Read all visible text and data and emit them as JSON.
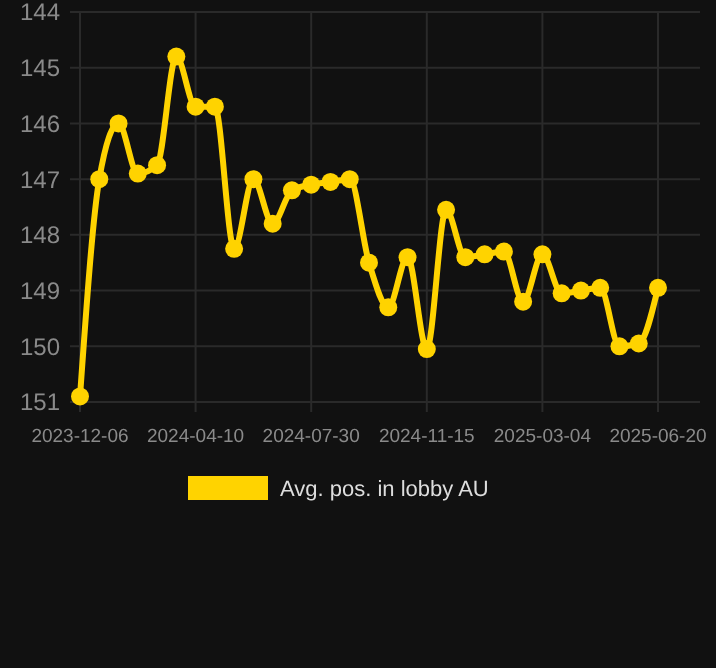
{
  "chart_data": {
    "type": "line",
    "categories": [
      "2023-12-06",
      null,
      null,
      null,
      null,
      null,
      "2024-04-10",
      null,
      null,
      null,
      null,
      null,
      "2024-07-30",
      null,
      null,
      null,
      null,
      null,
      "2024-11-15",
      null,
      null,
      null,
      null,
      null,
      "2025-03-04",
      null,
      null,
      null,
      null,
      null,
      "2025-06-20"
    ],
    "series": [
      {
        "name": "Avg. pos. in lobby AU",
        "color": "#ffd300",
        "values": [
          150.9,
          147.0,
          146.0,
          146.9,
          146.75,
          144.8,
          145.7,
          145.7,
          148.25,
          147.0,
          147.8,
          147.2,
          147.1,
          147.05,
          147.0,
          148.5,
          149.3,
          148.4,
          150.05,
          147.55,
          148.4,
          148.35,
          148.3,
          149.2,
          148.35,
          149.05,
          149.0,
          148.95,
          150.0,
          149.95,
          148.95
        ]
      }
    ],
    "ylim": [
      151,
      144
    ],
    "yticks": [
      144,
      145,
      146,
      147,
      148,
      149,
      150,
      151
    ],
    "grid": true,
    "legend": "bottom",
    "marker": "circle",
    "line_style": "solid"
  }
}
